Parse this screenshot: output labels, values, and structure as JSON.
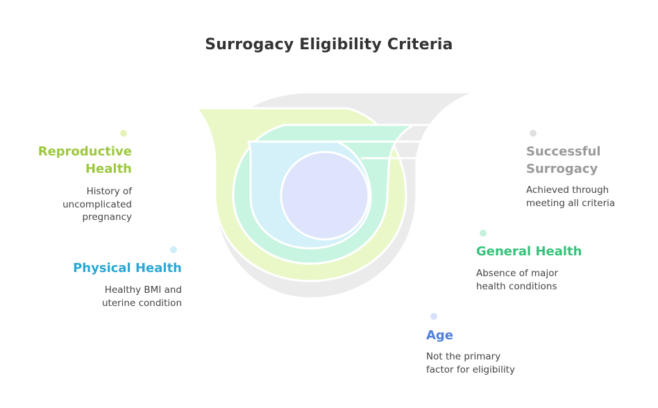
{
  "title": "Surrogacy Eligibility Criteria",
  "colors": {
    "reproductive": "#9cc83e",
    "physical": "#2aa7d6",
    "general": "#35c27a",
    "age": "#4f7fdc",
    "success": "#9a9a9a"
  },
  "criteria": {
    "reproductive": {
      "heading_line1": "Reproductive",
      "heading_line2": "Health",
      "desc_line1": "History of",
      "desc_line2": "uncomplicated",
      "desc_line3": "pregnancy"
    },
    "physical": {
      "heading": "Physical Health",
      "desc_line1": "Healthy BMI and",
      "desc_line2": "uterine condition"
    },
    "success": {
      "heading_line1": "Successful",
      "heading_line2": "Surrogacy",
      "desc_line1": "Achieved through",
      "desc_line2": "meeting all criteria"
    },
    "general": {
      "heading": "General Health",
      "desc_line1": "Absence of major",
      "desc_line2": "health conditions"
    },
    "age": {
      "heading": "Age",
      "desc_line1": "Not the primary",
      "desc_line2": "factor for eligibility"
    }
  }
}
